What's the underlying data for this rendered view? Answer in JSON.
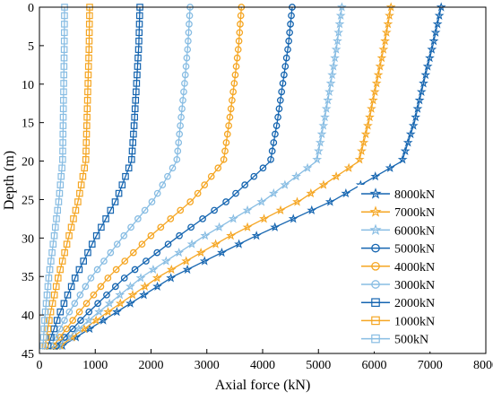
{
  "chart_data": {
    "type": "line",
    "title": "",
    "xlabel": "Axial force  (kN)",
    "ylabel": "Depth (m)",
    "xlim": [
      0,
      8000
    ],
    "ylim": [
      0,
      45
    ],
    "y_inverted": true,
    "x_axis_position": "bottom",
    "x_ticks": [
      0,
      1000,
      2000,
      3000,
      4000,
      5000,
      6000,
      7000,
      8000
    ],
    "y_ticks": [
      0,
      5,
      10,
      15,
      20,
      25,
      30,
      35,
      40,
      45
    ],
    "grid": false,
    "legend_position": "bottom-right",
    "colors": {
      "dark_blue": "#1565b0",
      "orange": "#f5a623",
      "light_blue": "#88bde3"
    },
    "depths": [
      0,
      5,
      10,
      15,
      20,
      25,
      30,
      35,
      40,
      44.5
    ],
    "series": [
      {
        "name": "8000kN",
        "color": "#1565b0",
        "marker": "star",
        "values": [
          7200,
          7050,
          6880,
          6720,
          6500,
          5300,
          3800,
          2400,
          1300,
          300
        ]
      },
      {
        "name": "7000kN",
        "color": "#f5a623",
        "marker": "star",
        "values": [
          6300,
          6180,
          6040,
          5900,
          5730,
          4700,
          3350,
          2150,
          1150,
          280
        ]
      },
      {
        "name": "6000kN",
        "color": "#88bde3",
        "marker": "star",
        "values": [
          5420,
          5330,
          5220,
          5100,
          4970,
          4050,
          2900,
          1850,
          1000,
          260
        ]
      },
      {
        "name": "5000kN",
        "color": "#1565b0",
        "marker": "circle",
        "values": [
          4530,
          4460,
          4360,
          4260,
          4140,
          3400,
          2450,
          1550,
          830,
          240
        ]
      },
      {
        "name": "4000kN",
        "color": "#f5a623",
        "marker": "circle",
        "values": [
          3620,
          3570,
          3490,
          3400,
          3300,
          2750,
          1950,
          1250,
          670,
          200
        ]
      },
      {
        "name": "3000kN",
        "color": "#88bde3",
        "marker": "circle",
        "values": [
          2700,
          2660,
          2600,
          2530,
          2460,
          2050,
          1480,
          940,
          500,
          170
        ]
      },
      {
        "name": "2000kN",
        "color": "#1565b0",
        "marker": "square",
        "values": [
          1800,
          1780,
          1740,
          1700,
          1650,
          1380,
          1000,
          650,
          350,
          130
        ]
      },
      {
        "name": "1000kN",
        "color": "#f5a623",
        "marker": "square",
        "values": [
          900,
          890,
          870,
          850,
          830,
          700,
          520,
          340,
          190,
          90
        ]
      },
      {
        "name": "500kN",
        "color": "#88bde3",
        "marker": "square",
        "values": [
          450,
          445,
          435,
          425,
          415,
          350,
          260,
          170,
          100,
          60
        ]
      }
    ]
  }
}
